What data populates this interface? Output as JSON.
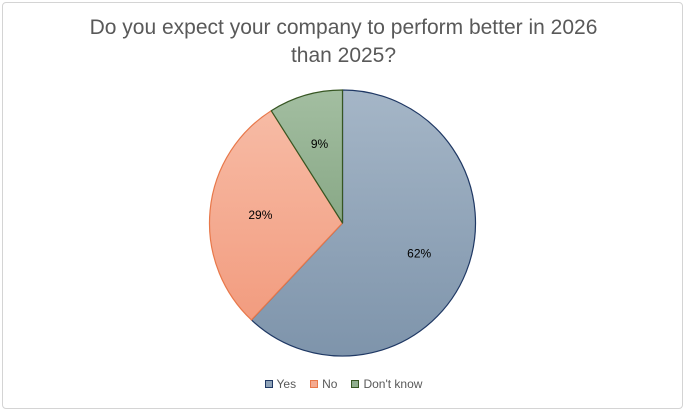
{
  "chart_data": {
    "type": "pie",
    "title_lines": [
      "Do you expect your company to perform better in 2026",
      "than 2025?"
    ],
    "categories": [
      "Yes",
      "No",
      "Don't know"
    ],
    "values": [
      62,
      29,
      9
    ],
    "data_labels": [
      "62%",
      "29%",
      "9%"
    ],
    "colors": [
      "#8fa3b8",
      "#f4aa90",
      "#90ae8e"
    ],
    "edge_colors": [
      "#1f3864",
      "#e8784a",
      "#375623"
    ],
    "start_angle_deg": 0,
    "direction": "clockwise",
    "legend_position": "bottom"
  }
}
